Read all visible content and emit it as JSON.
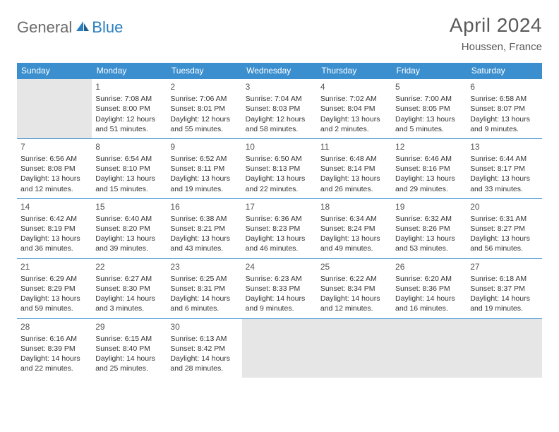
{
  "logo": {
    "text1": "General",
    "text2": "Blue"
  },
  "title": "April 2024",
  "location": "Houssen, France",
  "weekdays": [
    "Sunday",
    "Monday",
    "Tuesday",
    "Wednesday",
    "Thursday",
    "Friday",
    "Saturday"
  ],
  "colors": {
    "header_bg": "#3b8fcf",
    "header_fg": "#ffffff",
    "empty_bg": "#e6e6e6",
    "rule": "#3b8fcf",
    "text": "#333333",
    "title_fg": "#5a5a5a",
    "logo_gray": "#6a6a6a",
    "logo_blue": "#2a7fbf"
  },
  "weeks": [
    [
      null,
      {
        "n": "1",
        "sunrise": "Sunrise: 7:08 AM",
        "sunset": "Sunset: 8:00 PM",
        "d1": "Daylight: 12 hours",
        "d2": "and 51 minutes."
      },
      {
        "n": "2",
        "sunrise": "Sunrise: 7:06 AM",
        "sunset": "Sunset: 8:01 PM",
        "d1": "Daylight: 12 hours",
        "d2": "and 55 minutes."
      },
      {
        "n": "3",
        "sunrise": "Sunrise: 7:04 AM",
        "sunset": "Sunset: 8:03 PM",
        "d1": "Daylight: 12 hours",
        "d2": "and 58 minutes."
      },
      {
        "n": "4",
        "sunrise": "Sunrise: 7:02 AM",
        "sunset": "Sunset: 8:04 PM",
        "d1": "Daylight: 13 hours",
        "d2": "and 2 minutes."
      },
      {
        "n": "5",
        "sunrise": "Sunrise: 7:00 AM",
        "sunset": "Sunset: 8:05 PM",
        "d1": "Daylight: 13 hours",
        "d2": "and 5 minutes."
      },
      {
        "n": "6",
        "sunrise": "Sunrise: 6:58 AM",
        "sunset": "Sunset: 8:07 PM",
        "d1": "Daylight: 13 hours",
        "d2": "and 9 minutes."
      }
    ],
    [
      {
        "n": "7",
        "sunrise": "Sunrise: 6:56 AM",
        "sunset": "Sunset: 8:08 PM",
        "d1": "Daylight: 13 hours",
        "d2": "and 12 minutes."
      },
      {
        "n": "8",
        "sunrise": "Sunrise: 6:54 AM",
        "sunset": "Sunset: 8:10 PM",
        "d1": "Daylight: 13 hours",
        "d2": "and 15 minutes."
      },
      {
        "n": "9",
        "sunrise": "Sunrise: 6:52 AM",
        "sunset": "Sunset: 8:11 PM",
        "d1": "Daylight: 13 hours",
        "d2": "and 19 minutes."
      },
      {
        "n": "10",
        "sunrise": "Sunrise: 6:50 AM",
        "sunset": "Sunset: 8:13 PM",
        "d1": "Daylight: 13 hours",
        "d2": "and 22 minutes."
      },
      {
        "n": "11",
        "sunrise": "Sunrise: 6:48 AM",
        "sunset": "Sunset: 8:14 PM",
        "d1": "Daylight: 13 hours",
        "d2": "and 26 minutes."
      },
      {
        "n": "12",
        "sunrise": "Sunrise: 6:46 AM",
        "sunset": "Sunset: 8:16 PM",
        "d1": "Daylight: 13 hours",
        "d2": "and 29 minutes."
      },
      {
        "n": "13",
        "sunrise": "Sunrise: 6:44 AM",
        "sunset": "Sunset: 8:17 PM",
        "d1": "Daylight: 13 hours",
        "d2": "and 33 minutes."
      }
    ],
    [
      {
        "n": "14",
        "sunrise": "Sunrise: 6:42 AM",
        "sunset": "Sunset: 8:19 PM",
        "d1": "Daylight: 13 hours",
        "d2": "and 36 minutes."
      },
      {
        "n": "15",
        "sunrise": "Sunrise: 6:40 AM",
        "sunset": "Sunset: 8:20 PM",
        "d1": "Daylight: 13 hours",
        "d2": "and 39 minutes."
      },
      {
        "n": "16",
        "sunrise": "Sunrise: 6:38 AM",
        "sunset": "Sunset: 8:21 PM",
        "d1": "Daylight: 13 hours",
        "d2": "and 43 minutes."
      },
      {
        "n": "17",
        "sunrise": "Sunrise: 6:36 AM",
        "sunset": "Sunset: 8:23 PM",
        "d1": "Daylight: 13 hours",
        "d2": "and 46 minutes."
      },
      {
        "n": "18",
        "sunrise": "Sunrise: 6:34 AM",
        "sunset": "Sunset: 8:24 PM",
        "d1": "Daylight: 13 hours",
        "d2": "and 49 minutes."
      },
      {
        "n": "19",
        "sunrise": "Sunrise: 6:32 AM",
        "sunset": "Sunset: 8:26 PM",
        "d1": "Daylight: 13 hours",
        "d2": "and 53 minutes."
      },
      {
        "n": "20",
        "sunrise": "Sunrise: 6:31 AM",
        "sunset": "Sunset: 8:27 PM",
        "d1": "Daylight: 13 hours",
        "d2": "and 56 minutes."
      }
    ],
    [
      {
        "n": "21",
        "sunrise": "Sunrise: 6:29 AM",
        "sunset": "Sunset: 8:29 PM",
        "d1": "Daylight: 13 hours",
        "d2": "and 59 minutes."
      },
      {
        "n": "22",
        "sunrise": "Sunrise: 6:27 AM",
        "sunset": "Sunset: 8:30 PM",
        "d1": "Daylight: 14 hours",
        "d2": "and 3 minutes."
      },
      {
        "n": "23",
        "sunrise": "Sunrise: 6:25 AM",
        "sunset": "Sunset: 8:31 PM",
        "d1": "Daylight: 14 hours",
        "d2": "and 6 minutes."
      },
      {
        "n": "24",
        "sunrise": "Sunrise: 6:23 AM",
        "sunset": "Sunset: 8:33 PM",
        "d1": "Daylight: 14 hours",
        "d2": "and 9 minutes."
      },
      {
        "n": "25",
        "sunrise": "Sunrise: 6:22 AM",
        "sunset": "Sunset: 8:34 PM",
        "d1": "Daylight: 14 hours",
        "d2": "and 12 minutes."
      },
      {
        "n": "26",
        "sunrise": "Sunrise: 6:20 AM",
        "sunset": "Sunset: 8:36 PM",
        "d1": "Daylight: 14 hours",
        "d2": "and 16 minutes."
      },
      {
        "n": "27",
        "sunrise": "Sunrise: 6:18 AM",
        "sunset": "Sunset: 8:37 PM",
        "d1": "Daylight: 14 hours",
        "d2": "and 19 minutes."
      }
    ],
    [
      {
        "n": "28",
        "sunrise": "Sunrise: 6:16 AM",
        "sunset": "Sunset: 8:39 PM",
        "d1": "Daylight: 14 hours",
        "d2": "and 22 minutes."
      },
      {
        "n": "29",
        "sunrise": "Sunrise: 6:15 AM",
        "sunset": "Sunset: 8:40 PM",
        "d1": "Daylight: 14 hours",
        "d2": "and 25 minutes."
      },
      {
        "n": "30",
        "sunrise": "Sunrise: 6:13 AM",
        "sunset": "Sunset: 8:42 PM",
        "d1": "Daylight: 14 hours",
        "d2": "and 28 minutes."
      },
      null,
      null,
      null,
      null
    ]
  ]
}
